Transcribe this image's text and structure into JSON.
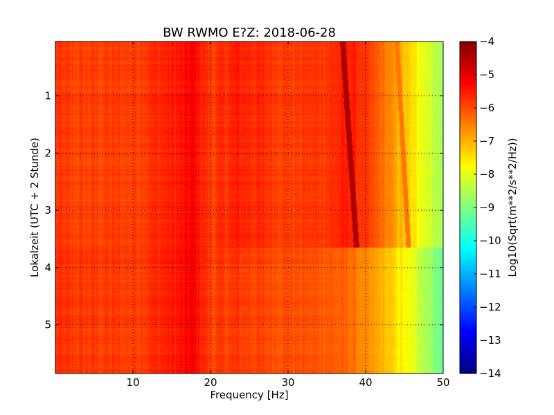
{
  "chart_data": {
    "type": "heatmap",
    "title": "BW RWMO E?Z: 2018-06-28",
    "xlabel": "Frequency [Hz]",
    "ylabel": "Lokalzeit (UTC + 2 Stunde)",
    "xlim": [
      0,
      50
    ],
    "ylim": [
      5.85,
      0.05
    ],
    "y_inverted": true,
    "grid": true,
    "xticks": [
      10,
      20,
      30,
      40,
      50
    ],
    "yticks": [
      1,
      2,
      3,
      4,
      5
    ],
    "colormap": "jet",
    "colorbar": {
      "label": "Log10(Sqrt(m**2/s**2/Hz))",
      "range": [
        -14,
        -4
      ],
      "ticks": [
        -4,
        -5,
        -6,
        -7,
        -8,
        -9,
        -10,
        -11,
        -12,
        -13,
        -14
      ]
    },
    "level_break_hour": 3.65,
    "psd_profile_before_break": {
      "frequency_hz": [
        0,
        2,
        10,
        16.5,
        17.5,
        20,
        23.5,
        27,
        30,
        35,
        38,
        40,
        42,
        44,
        46,
        48,
        50
      ],
      "log10_psd": [
        -5.8,
        -5.9,
        -5.85,
        -5.45,
        -5.2,
        -5.85,
        -5.55,
        -5.7,
        -5.85,
        -5.75,
        -5.5,
        -5.85,
        -6.3,
        -6.9,
        -7.5,
        -8.1,
        -8.7
      ]
    },
    "psd_profile_after_break": {
      "frequency_hz": [
        0,
        2,
        10,
        16.5,
        17.5,
        20,
        23.5,
        27,
        30,
        35,
        38,
        40,
        42,
        44,
        46,
        48,
        50
      ],
      "log10_psd": [
        -5.75,
        -5.8,
        -5.85,
        -5.4,
        -5.15,
        -5.9,
        -5.8,
        -5.95,
        -6.0,
        -6.1,
        -6.3,
        -6.7,
        -7.0,
        -7.5,
        -8.0,
        -8.6,
        -9.3
      ]
    },
    "drifting_line": {
      "start": {
        "hour": 0.05,
        "frequency_hz": 37.0
      },
      "end": {
        "hour": 3.65,
        "frequency_hz": 38.8
      },
      "log10_psd": -4.3
    },
    "faint_drifting_line": {
      "start": {
        "hour": 0.05,
        "frequency_hz": 44.0
      },
      "end": {
        "hour": 3.65,
        "frequency_hz": 45.5
      },
      "log10_psd": -6.4
    }
  }
}
